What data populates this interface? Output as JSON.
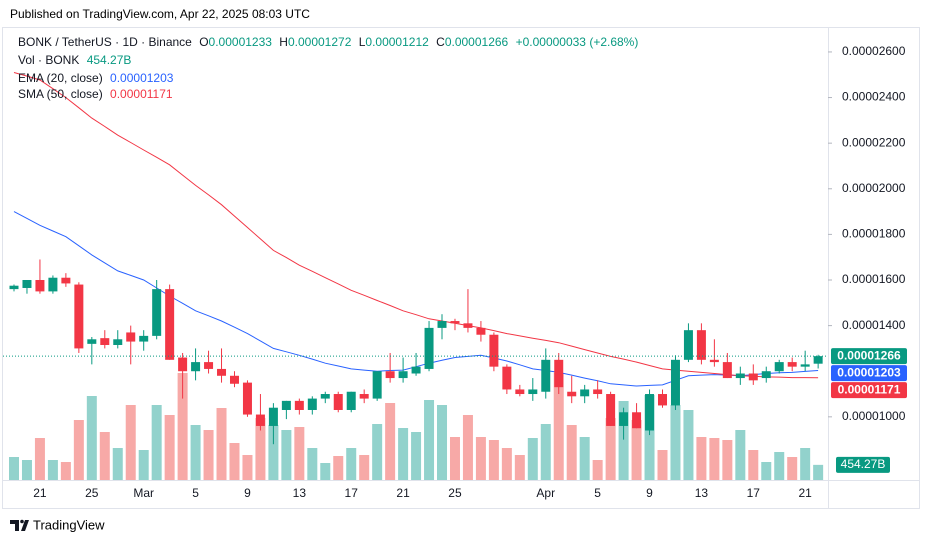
{
  "published": "Published on TradingView.com, Apr 22, 2025 08:03 UTC",
  "footer": "TradingView",
  "chart_data": {
    "type": "candlestick",
    "symbol": "BONK / TetherUS · 1D · Binance",
    "legend": {
      "open": {
        "label": "O",
        "value": "0.00001233"
      },
      "high": {
        "label": "H",
        "value": "0.00001272"
      },
      "low": {
        "label": "L",
        "value": "0.00001212"
      },
      "close": {
        "label": "C",
        "value": "0.00001266"
      },
      "change": "+0.00000033 (+2.68%)"
    },
    "volume_legend": {
      "label": "Vol · BONK",
      "value": "454.27B"
    },
    "categories": [
      null,
      null,
      "21",
      null,
      null,
      null,
      "25",
      null,
      null,
      null,
      "Mar",
      null,
      null,
      null,
      "5",
      null,
      null,
      null,
      "9",
      null,
      null,
      null,
      "13",
      null,
      null,
      null,
      "17",
      null,
      null,
      null,
      "21",
      null,
      null,
      null,
      "25",
      null,
      null,
      null,
      null,
      null,
      null,
      "Apr",
      null,
      null,
      null,
      "5",
      null,
      null,
      null,
      "9",
      null,
      null,
      null,
      "13",
      null,
      null,
      null,
      "17",
      null,
      null,
      null,
      "21",
      null
    ],
    "open": [
      1.56e-05,
      1.565e-05,
      1.6e-05,
      1.55e-05,
      1.61e-05,
      1.58e-05,
      1.32e-05,
      1.345e-05,
      1.315e-05,
      1.37e-05,
      1.33e-05,
      1.355e-05,
      1.56e-05,
      1.26e-05,
      1.2e-05,
      1.24e-05,
      1.21e-05,
      1.18e-05,
      1.15e-05,
      1.01e-05,
      9.6e-06,
      1.03e-05,
      1.07e-05,
      1.03e-05,
      1.08e-05,
      1.1e-05,
      1.03e-05,
      1.1e-05,
      1.08e-05,
      1.2e-05,
      1.17e-05,
      1.19e-05,
      1.21e-05,
      1.39e-05,
      1.42e-05,
      1.41e-05,
      1.39e-05,
      1.36e-05,
      1.22e-05,
      1.12e-05,
      1.1e-05,
      1.11e-05,
      1.25e-05,
      1.11e-05,
      1.09e-05,
      1.12e-05,
      1.1e-05,
      9.6e-06,
      1.02e-05,
      9.4e-06,
      1.1e-05,
      1.05e-05,
      1.25e-05,
      1.38e-05,
      1.25e-05,
      1.24e-05,
      1.17e-05,
      1.19e-05,
      1.17e-05,
      1.2e-05,
      1.24e-05,
      1.22e-05,
      1.233e-05
    ],
    "high": [
      1.58e-05,
      1.6e-05,
      1.69e-05,
      1.62e-05,
      1.63e-05,
      1.59e-05,
      1.35e-05,
      1.38e-05,
      1.38e-05,
      1.4e-05,
      1.38e-05,
      1.6e-05,
      1.58e-05,
      1.28e-05,
      1.3e-05,
      1.29e-05,
      1.3e-05,
      1.2e-05,
      1.16e-05,
      1.1e-05,
      1.06e-05,
      1.07e-05,
      1.08e-05,
      1.09e-05,
      1.11e-05,
      1.11e-05,
      1.11e-05,
      1.12e-05,
      1.2e-05,
      1.28e-05,
      1.26e-05,
      1.28e-05,
      1.42e-05,
      1.45e-05,
      1.43e-05,
      1.56e-05,
      1.42e-05,
      1.37e-05,
      1.23e-05,
      1.14e-05,
      1.17e-05,
      1.3e-05,
      1.28e-05,
      1.18e-05,
      1.14e-05,
      1.16e-05,
      1.11e-05,
      1.04e-05,
      1.06e-05,
      1.12e-05,
      1.12e-05,
      1.27e-05,
      1.41e-05,
      1.41e-05,
      1.34e-05,
      1.28e-05,
      1.22e-05,
      1.23e-05,
      1.22e-05,
      1.25e-05,
      1.26e-05,
      1.29e-05,
      1.272e-05
    ],
    "low": [
      1.55e-05,
      1.54e-05,
      1.54e-05,
      1.54e-05,
      1.57e-05,
      1.28e-05,
      1.23e-05,
      1.3e-05,
      1.3e-05,
      1.23e-05,
      1.29e-05,
      1.34e-05,
      1.25e-05,
      1.08e-05,
      1.16e-05,
      1.19e-05,
      1.15e-05,
      1.13e-05,
      1e-05,
      9.4e-06,
      8.8e-06,
      9.9e-06,
      1.01e-05,
      1.01e-05,
      1.06e-05,
      1.02e-05,
      1.02e-05,
      1.06e-05,
      1.07e-05,
      1.15e-05,
      1.15e-05,
      1.18e-05,
      1.2e-05,
      1.34e-05,
      1.38e-05,
      1.37e-05,
      1.33e-05,
      1.2e-05,
      1.1e-05,
      1.09e-05,
      1.07e-05,
      1.08e-05,
      1.1e-05,
      1.06e-05,
      1.06e-05,
      1.08e-05,
      9.6e-06,
      9e-06,
      9.5e-06,
      9.2e-06,
      1.04e-05,
      1.03e-05,
      1.24e-05,
      1.23e-05,
      1.22e-05,
      1.17e-05,
      1.14e-05,
      1.14e-05,
      1.15e-05,
      1.19e-05,
      1.2e-05,
      1.2e-05,
      1.212e-05
    ],
    "close": [
      1.575e-05,
      1.6e-05,
      1.55e-05,
      1.61e-05,
      1.585e-05,
      1.3e-05,
      1.34e-05,
      1.315e-05,
      1.34e-05,
      1.33e-05,
      1.355e-05,
      1.56e-05,
      1.25e-05,
      1.2e-05,
      1.24e-05,
      1.21e-05,
      1.18e-05,
      1.145e-05,
      1.01e-05,
      9.6e-06,
      1.04e-05,
      1.07e-05,
      1.03e-05,
      1.08e-05,
      1.1e-05,
      1.03e-05,
      1.11e-05,
      1.08e-05,
      1.2e-05,
      1.17e-05,
      1.2e-05,
      1.22e-05,
      1.39e-05,
      1.42e-05,
      1.41e-05,
      1.39e-05,
      1.36e-05,
      1.22e-05,
      1.12e-05,
      1.1e-05,
      1.12e-05,
      1.25e-05,
      1.13e-05,
      1.09e-05,
      1.12e-05,
      1.1e-05,
      9.6e-06,
      1.02e-05,
      9.5e-06,
      1.1e-05,
      1.05e-05,
      1.25e-05,
      1.38e-05,
      1.25e-05,
      1.24e-05,
      1.17e-05,
      1.19e-05,
      1.16e-05,
      1.2e-05,
      1.24e-05,
      1.22e-05,
      1.23e-05,
      1.266e-05
    ],
    "volume": [
      690000000000,
      600000000000,
      1260000000000,
      600000000000,
      540000000000,
      1800000000000,
      2520000000000,
      1440000000000,
      960000000000,
      2250000000000,
      900000000000,
      2250000000000,
      1950000000000,
      3210000000000,
      1650000000000,
      1500000000000,
      2160000000000,
      1110000000000,
      750000000000,
      1860000000000,
      1650000000000,
      1500000000000,
      1590000000000,
      960000000000,
      510000000000,
      720000000000,
      960000000000,
      750000000000,
      1680000000000,
      2310000000000,
      1560000000000,
      1440000000000,
      2400000000000,
      2250000000000,
      1290000000000,
      1950000000000,
      1290000000000,
      1200000000000,
      960000000000,
      750000000000,
      1260000000000,
      1680000000000,
      3210000000000,
      1650000000000,
      1290000000000,
      600000000000,
      1860000000000,
      2370000000000,
      1800000000000,
      2550000000000,
      900000000000,
      2250000000000,
      2100000000000,
      1290000000000,
      1260000000000,
      1200000000000,
      1500000000000,
      900000000000,
      540000000000,
      840000000000,
      690000000000,
      960000000000,
      454270000000
    ],
    "volume_ylim": [
      0,
      13560000000000
    ],
    "up_color": "#089981",
    "down_color": "#f23645",
    "up_volume_color": "#92d2cc",
    "down_volume_color": "#f7a9a7",
    "ylim": [
      7.23e-06,
      2.705e-05
    ],
    "yticks": [
      {
        "value": 2.6e-05,
        "label": "0.00002600"
      },
      {
        "value": 2.4e-05,
        "label": "0.00002400"
      },
      {
        "value": 2.2e-05,
        "label": "0.00002200"
      },
      {
        "value": 2e-05,
        "label": "0.00002000"
      },
      {
        "value": 1.8e-05,
        "label": "0.00001800"
      },
      {
        "value": 1.6e-05,
        "label": "0.00001600"
      },
      {
        "value": 1.4e-05,
        "label": "0.00001400"
      },
      {
        "value": 1e-05,
        "label": "0.00001000"
      }
    ],
    "series": [
      {
        "name": "EMA (20, close)",
        "color": "#2962ff",
        "value_label": "0.00001203",
        "values": [
          1.9e-05,
          1.87e-05,
          1.84e-05,
          1.815e-05,
          1.79e-05,
          1.75e-05,
          1.71e-05,
          1.675e-05,
          1.64e-05,
          1.62e-05,
          1.6e-05,
          1.565e-05,
          1.53e-05,
          1.498e-05,
          1.465e-05,
          1.443e-05,
          1.42e-05,
          1.393e-05,
          1.365e-05,
          1.333e-05,
          1.3e-05,
          1.285e-05,
          1.27e-05,
          1.253e-05,
          1.235e-05,
          1.223e-05,
          1.21e-05,
          1.205e-05,
          1.2e-05,
          1.203e-05,
          1.205e-05,
          1.22e-05,
          1.235e-05,
          1.248e-05,
          1.26e-05,
          1.265e-05,
          1.27e-05,
          1.258e-05,
          1.245e-05,
          1.228e-05,
          1.21e-05,
          1.203e-05,
          1.195e-05,
          1.183e-05,
          1.17e-05,
          1.158e-05,
          1.145e-05,
          1.14e-05,
          1.135e-05,
          1.138e-05,
          1.14e-05,
          1.16e-05,
          1.18e-05,
          1.183e-05,
          1.185e-05,
          1.183e-05,
          1.18e-05,
          1.185e-05,
          1.19e-05,
          1.193e-05,
          1.195e-05,
          1.199e-05,
          1.203e-05
        ]
      },
      {
        "name": "SMA (50, close)",
        "color": "#f23645",
        "value_label": "0.00001171",
        "values": [
          2.51e-05,
          2.494e-05,
          2.477e-05,
          2.439e-05,
          2.4e-05,
          2.355e-05,
          2.31e-05,
          2.273e-05,
          2.235e-05,
          2.203e-05,
          2.17e-05,
          2.138e-05,
          2.105e-05,
          2.06e-05,
          2.015e-05,
          1.973e-05,
          1.93e-05,
          1.88e-05,
          1.83e-05,
          1.78e-05,
          1.73e-05,
          1.698e-05,
          1.665e-05,
          1.638e-05,
          1.61e-05,
          1.583e-05,
          1.555e-05,
          1.533e-05,
          1.51e-05,
          1.488e-05,
          1.465e-05,
          1.448e-05,
          1.43e-05,
          1.42e-05,
          1.41e-05,
          1.4e-05,
          1.39e-05,
          1.378e-05,
          1.365e-05,
          1.355e-05,
          1.345e-05,
          1.335e-05,
          1.325e-05,
          1.31e-05,
          1.295e-05,
          1.28e-05,
          1.265e-05,
          1.253e-05,
          1.24e-05,
          1.225e-05,
          1.21e-05,
          1.205e-05,
          1.2e-05,
          1.195e-05,
          1.19e-05,
          1.185e-05,
          1.18e-05,
          1.178e-05,
          1.175e-05,
          1.174e-05,
          1.172e-05,
          1.172e-05,
          1.171e-05
        ]
      }
    ]
  }
}
